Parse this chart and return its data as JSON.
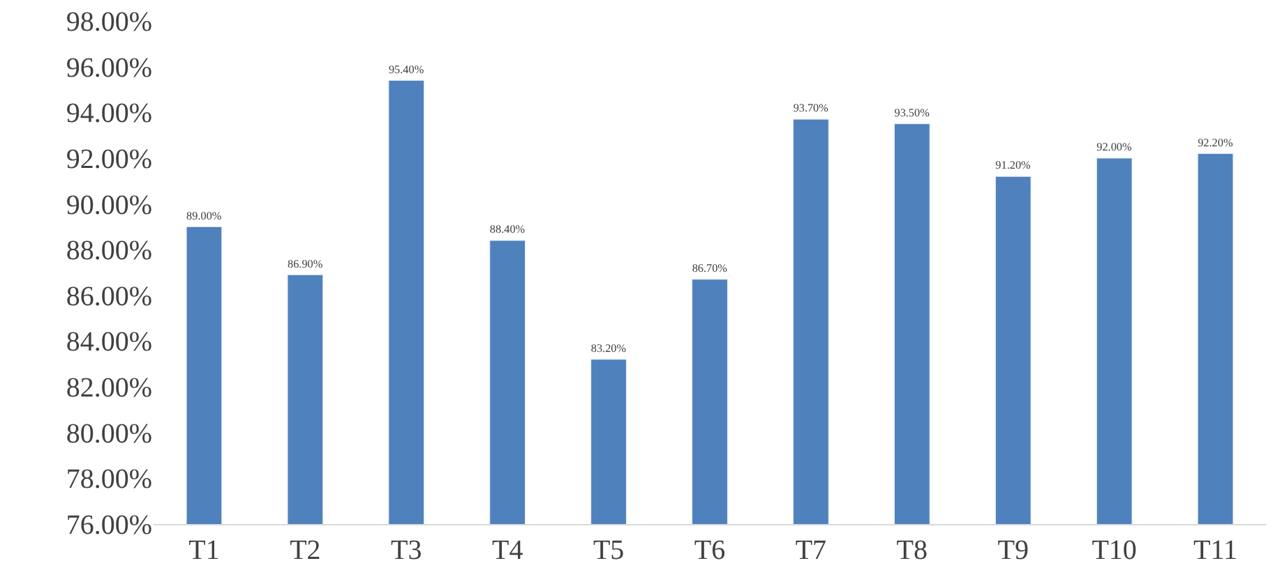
{
  "chart_data": {
    "type": "bar",
    "categories": [
      "T1",
      "T2",
      "T3",
      "T4",
      "T5",
      "T6",
      "T7",
      "T8",
      "T9",
      "T10",
      "T11"
    ],
    "values": [
      89.0,
      86.9,
      95.4,
      88.4,
      83.2,
      86.7,
      93.7,
      93.5,
      91.2,
      92.0,
      92.2
    ],
    "value_labels": [
      "89.00%",
      "86.90%",
      "95.40%",
      "88.40%",
      "83.20%",
      "86.70%",
      "93.70%",
      "93.50%",
      "91.20%",
      "92.00%",
      "92.20%"
    ],
    "color": "#4f81bd",
    "ylim": [
      76,
      98
    ],
    "yticks": [
      {
        "value": 76,
        "label": "76.00%"
      },
      {
        "value": 78,
        "label": "78.00%"
      },
      {
        "value": 80,
        "label": "80.00%"
      },
      {
        "value": 82,
        "label": "82.00%"
      },
      {
        "value": 84,
        "label": "84.00%"
      },
      {
        "value": 86,
        "label": "86.00%"
      },
      {
        "value": 88,
        "label": "88.00%"
      },
      {
        "value": 90,
        "label": "90.00%"
      },
      {
        "value": 92,
        "label": "92.00%"
      },
      {
        "value": 94,
        "label": "94.00%"
      },
      {
        "value": 96,
        "label": "96.00%"
      },
      {
        "value": 98,
        "label": "98.00%"
      }
    ],
    "grid": false,
    "legend": false
  }
}
